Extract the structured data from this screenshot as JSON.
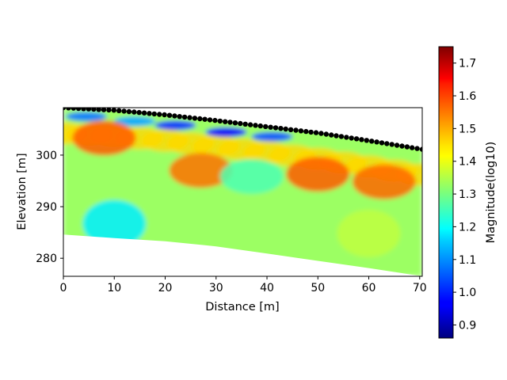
{
  "chart_data": {
    "type": "heatmap",
    "title": "",
    "xlabel": "Distance [m]",
    "ylabel": "Elevation [m]",
    "xlim": [
      0,
      70.5
    ],
    "ylim": [
      276.5,
      309.2
    ],
    "xticks": [
      0,
      10,
      20,
      30,
      40,
      50,
      60,
      70
    ],
    "yticks": [
      280,
      290,
      300
    ],
    "colorbar": {
      "label": "Magnitude(log10)",
      "colormap": "jet",
      "range": [
        0.86,
        1.75
      ],
      "ticks": [
        "0.9",
        "1.0",
        "1.1",
        "1.2",
        "1.3",
        "1.4",
        "1.5",
        "1.6",
        "1.7"
      ]
    },
    "surface_profile": [
      [
        0,
        309.2
      ],
      [
        10,
        308.7
      ],
      [
        20,
        307.8
      ],
      [
        30,
        306.7
      ],
      [
        40,
        305.5
      ],
      [
        50,
        304.3
      ],
      [
        60,
        302.8
      ],
      [
        70,
        301.2
      ]
    ],
    "bottom_profile": [
      [
        0,
        284.6
      ],
      [
        10,
        283.9
      ],
      [
        20,
        283.3
      ],
      [
        30,
        282.3
      ],
      [
        40,
        280.9
      ],
      [
        50,
        279.5
      ],
      [
        60,
        278.1
      ],
      [
        70.5,
        276.5
      ]
    ],
    "electrodes": {
      "count": 72,
      "x_start": 0,
      "x_end": 70.5
    },
    "anomalies": [
      {
        "x": 4.5,
        "depth": 1.5,
        "value": 1.08
      },
      {
        "x": 14,
        "depth": 1.8,
        "value": 1.12
      },
      {
        "x": 22,
        "depth": 1.8,
        "value": 1.02
      },
      {
        "x": 32,
        "depth": 2.0,
        "value": 0.97
      },
      {
        "x": 41,
        "depth": 1.8,
        "value": 1.05
      },
      {
        "x": 8,
        "depth": 5.5,
        "value": 1.56
      },
      {
        "x": 27,
        "depth": 10,
        "value": 1.54
      },
      {
        "x": 50,
        "depth": 8,
        "value": 1.56
      },
      {
        "x": 63,
        "depth": 7.5,
        "value": 1.55
      },
      {
        "x": 37,
        "depth": 10,
        "value": 1.26
      },
      {
        "x": 10,
        "depth": 22,
        "value": 1.18
      },
      {
        "x": 60,
        "depth": 18,
        "value": 1.36
      }
    ]
  }
}
